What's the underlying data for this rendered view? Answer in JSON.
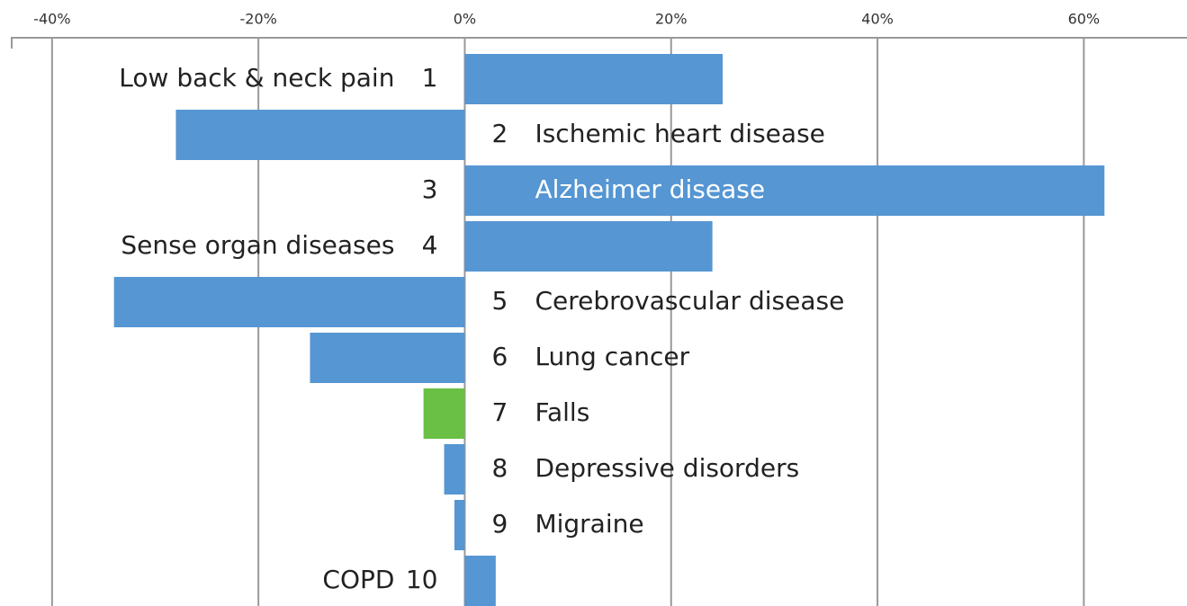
{
  "chart_data": {
    "type": "bar",
    "orientation": "horizontal",
    "ranks": [
      1,
      2,
      3,
      4,
      5,
      6,
      7,
      8,
      9,
      10
    ],
    "categories": [
      "Low back & neck pain",
      "Ischemic heart disease",
      "Alzheimer disease",
      "Sense organ diseases",
      "Cerebrovascular disease",
      "Lung cancer",
      "Falls",
      "Depressive disorders",
      "Migraine",
      "COPD"
    ],
    "values": [
      25,
      -28,
      62,
      24,
      -34,
      -15,
      -4,
      -2,
      -1,
      3
    ],
    "colors": [
      "#5596d3",
      "#5596d3",
      "#5596d3",
      "#5596d3",
      "#5596d3",
      "#5596d3",
      "#6abf45",
      "#5596d3",
      "#5596d3",
      "#5596d3"
    ],
    "xlim": [
      -44,
      70
    ],
    "xticks": [
      {
        "value": -40,
        "label": "-40%"
      },
      {
        "value": -20,
        "label": "-20%"
      },
      {
        "value": 0,
        "label": "0%"
      },
      {
        "value": 20,
        "label": "20%"
      },
      {
        "value": 40,
        "label": "40%"
      },
      {
        "value": 60,
        "label": "60%"
      }
    ],
    "grid": true
  }
}
